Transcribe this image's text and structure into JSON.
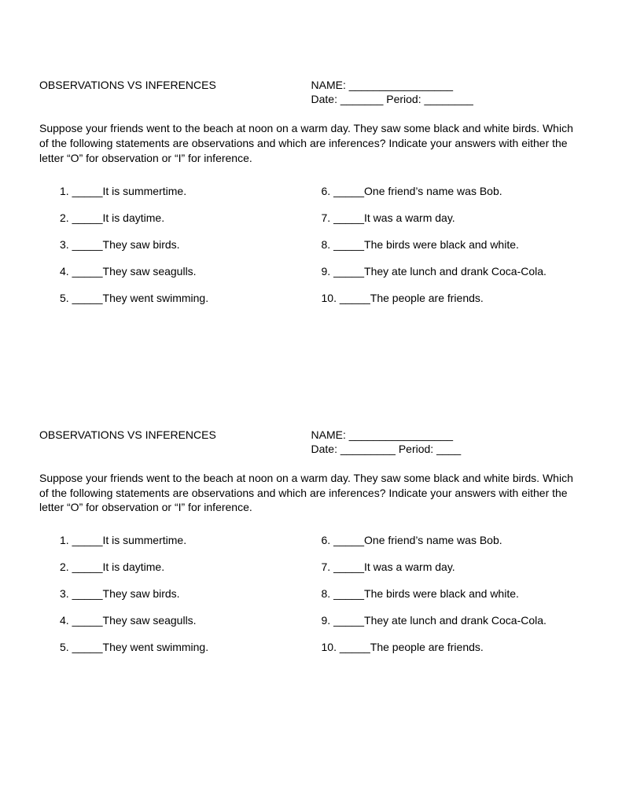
{
  "page": {
    "background_color": "#ffffff",
    "text_color": "#000000",
    "font_family": "Arial",
    "font_size_pt": 11
  },
  "worksheets": [
    {
      "title": "OBSERVATIONS VS INFERENCES",
      "name_label": "NAME: _________________",
      "date_label": "Date: _______ Period: ________",
      "instructions": "Suppose your friends went to the beach at noon on a warm day.  They saw some black and white birds.  Which of the following statements are observations and which are inferences?  Indicate your answers with either the letter “O” for observation or “I” for inference.",
      "left_questions": [
        {
          "num": "1.",
          "blank": "_____",
          "text": "It is summertime."
        },
        {
          "num": "2.",
          "blank": "_____",
          "text": "It is daytime."
        },
        {
          "num": "3.",
          "blank": "_____",
          "text": "They saw birds."
        },
        {
          "num": "4.",
          "blank": "_____",
          "text": "They saw seagulls."
        },
        {
          "num": "5.",
          "blank": "_____",
          "text": "They went swimming."
        }
      ],
      "right_questions": [
        {
          "num": "6.",
          "blank": "_____",
          "text": "One friend’s name was Bob."
        },
        {
          "num": "7.",
          "blank": "_____",
          "text": "It was a warm day."
        },
        {
          "num": "8.",
          "blank": "_____",
          "text": "The birds were black and white."
        },
        {
          "num": "9.",
          "blank": "_____",
          "text": "They ate lunch and drank Coca-Cola."
        },
        {
          "num": "10.",
          "blank": "_____",
          "text": "The people are friends."
        }
      ]
    },
    {
      "title": "OBSERVATIONS VS INFERENCES",
      "name_label": "NAME: _________________",
      "date_label": "Date: _________ Period: ____",
      "instructions": "Suppose your friends went to the beach at noon on a warm day.  They saw some black and white birds.  Which of the following statements are observations and which are inferences?  Indicate your answers with either the letter “O” for observation or “I” for inference.",
      "left_questions": [
        {
          "num": "1.",
          "blank": "_____",
          "text": "It is summertime."
        },
        {
          "num": "2.",
          "blank": "_____",
          "text": "It is daytime."
        },
        {
          "num": "3.",
          "blank": "_____",
          "text": "They saw birds."
        },
        {
          "num": "4.",
          "blank": "_____",
          "text": "They saw seagulls."
        },
        {
          "num": "5.",
          "blank": "_____",
          "text": "They went swimming."
        }
      ],
      "right_questions": [
        {
          "num": "6.",
          "blank": "_____",
          "text": "One friend’s name was Bob."
        },
        {
          "num": "7.",
          "blank": "_____",
          "text": "It was a warm day."
        },
        {
          "num": "8.",
          "blank": "_____",
          "text": "The birds were black and white."
        },
        {
          "num": "9.",
          "blank": "_____",
          "text": "They ate lunch and drank Coca-Cola."
        },
        {
          "num": "10.",
          "blank": "_____",
          "text": "The people are friends."
        }
      ]
    }
  ]
}
